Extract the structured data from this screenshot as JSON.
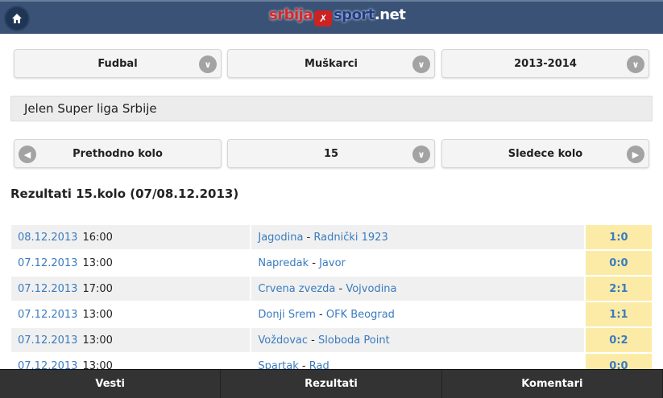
{
  "header": {
    "logo": {
      "part1": "srbija",
      "part2": "sport",
      "part3": ".net"
    }
  },
  "filters": {
    "sport": "Fudbal",
    "gender": "Muškarci",
    "season": "2013-2014"
  },
  "league": "Jelen Super liga Srbije",
  "round_nav": {
    "prev": "Prethodno kolo",
    "round": "15",
    "next": "Sledece kolo"
  },
  "results_title": "Rezultati 15.kolo (07/08.12.2013)",
  "matches": [
    {
      "date": "08.12.2013",
      "time": "16:00",
      "home": "Jagodina",
      "away": "Radnički 1923",
      "score": "1:0"
    },
    {
      "date": "07.12.2013",
      "time": "13:00",
      "home": "Napredak",
      "away": "Javor",
      "score": "0:0"
    },
    {
      "date": "07.12.2013",
      "time": "17:00",
      "home": "Crvena zvezda",
      "away": "Vojvodina",
      "score": "2:1"
    },
    {
      "date": "07.12.2013",
      "time": "13:00",
      "home": "Donji Srem",
      "away": "OFK Beograd",
      "score": "1:1"
    },
    {
      "date": "07.12.2013",
      "time": "13:00",
      "home": "Voždovac",
      "away": "Sloboda Point",
      "score": "0:2"
    },
    {
      "date": "07.12.2013",
      "time": "13:00",
      "home": "Spartak",
      "away": "Rad",
      "score": "0:0"
    }
  ],
  "footer": {
    "news": "Vesti",
    "results": "Rezultati",
    "comments": "Komentari"
  }
}
